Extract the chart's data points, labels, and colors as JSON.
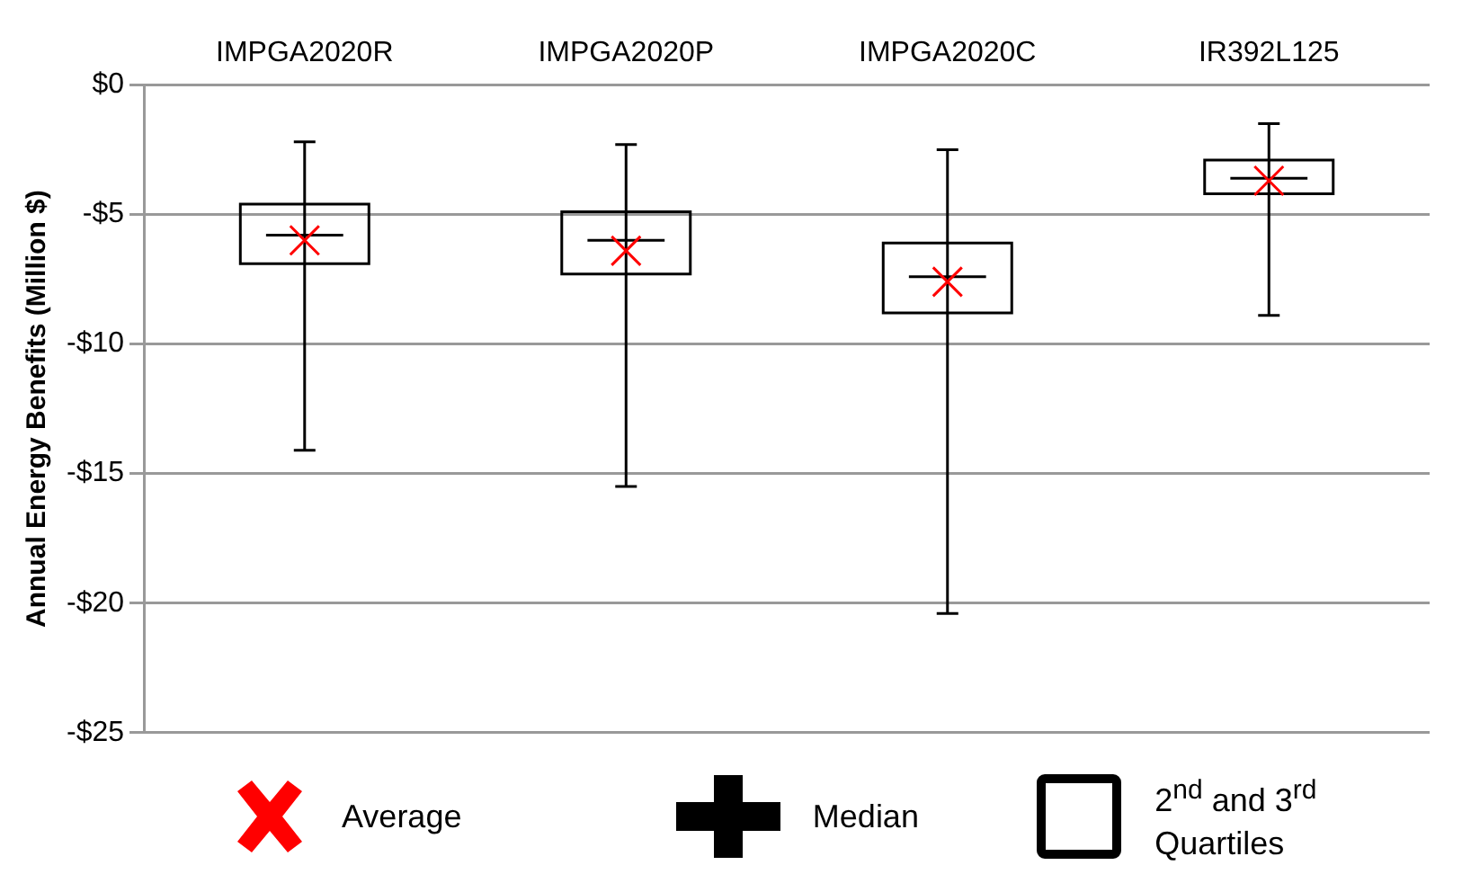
{
  "chart_data": {
    "type": "box",
    "ylabel": "Annual Energy Benefits (Million $)",
    "categories": [
      "IMPGA2020R",
      "IMPGA2020P",
      "IMPGA2020C",
      "IR392L125"
    ],
    "series": [
      {
        "color": "#000000",
        "boxes": [
          {
            "low": -14.1,
            "q1": -6.9,
            "median": -5.8,
            "q3": -4.6,
            "high": -2.2,
            "mean": -6.0
          },
          {
            "low": -15.5,
            "q1": -7.3,
            "median": -6.0,
            "q3": -4.9,
            "high": -2.3,
            "mean": -6.4
          },
          {
            "low": -20.4,
            "q1": -8.8,
            "median": -7.4,
            "q3": -6.1,
            "high": -2.5,
            "mean": -7.6
          },
          {
            "low": -8.9,
            "q1": -4.2,
            "median": -3.6,
            "q3": -2.9,
            "high": -1.5,
            "mean": -3.7
          }
        ]
      }
    ],
    "ylim": [
      -25,
      0
    ],
    "yticks": [
      {
        "value": 0,
        "label": "$0"
      },
      {
        "value": -5,
        "label": "-$5"
      },
      {
        "value": -10,
        "label": "-$10"
      },
      {
        "value": -15,
        "label": "-$15"
      },
      {
        "value": -20,
        "label": "-$20"
      },
      {
        "value": -25,
        "label": "-$25"
      }
    ],
    "grid": "y",
    "annotations": [
      "Average",
      "Median",
      "2$^{nd}$ and 3$^{rd}$ Quartiles"
    ]
  }
}
